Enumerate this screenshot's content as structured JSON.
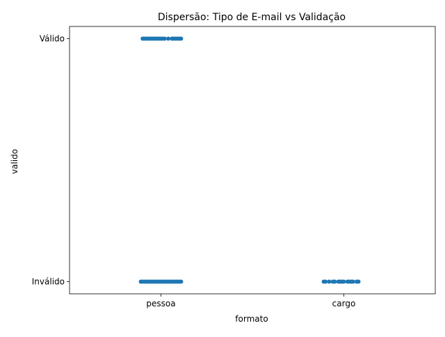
{
  "chart_data": {
    "type": "scatter",
    "title": "Dispersão: Tipo de E-mail vs Validação",
    "xlabel": "formato",
    "ylabel": "valido",
    "x_categories": [
      "pessoa",
      "cargo"
    ],
    "y_categories": [
      "Inválido",
      "Válido"
    ],
    "grid": false,
    "legend": "none",
    "marker_color": "#1f77b4",
    "points": [
      {
        "x": "pessoa",
        "y": "Válido",
        "jitter": [
          -0.1,
          -0.09,
          -0.08,
          -0.07,
          -0.06,
          -0.05,
          -0.04,
          -0.03,
          -0.02,
          -0.01,
          0.0,
          0.01,
          0.02,
          0.04,
          0.06,
          0.07,
          0.08,
          0.09,
          0.1,
          0.11
        ]
      },
      {
        "x": "pessoa",
        "y": "Inválido",
        "jitter": [
          -0.11,
          -0.1,
          -0.09,
          -0.08,
          -0.07,
          -0.06,
          -0.05,
          -0.04,
          -0.03,
          -0.02,
          -0.01,
          0.0,
          0.01,
          0.02,
          0.03,
          0.04,
          0.05,
          0.06,
          0.07,
          0.08,
          0.09,
          0.1,
          0.11
        ]
      },
      {
        "x": "cargo",
        "y": "Inválido",
        "jitter": [
          -0.11,
          -0.1,
          -0.08,
          -0.06,
          -0.05,
          -0.03,
          -0.02,
          -0.01,
          0.0,
          0.02,
          0.03,
          0.04,
          0.05,
          0.07,
          0.08
        ]
      }
    ]
  }
}
